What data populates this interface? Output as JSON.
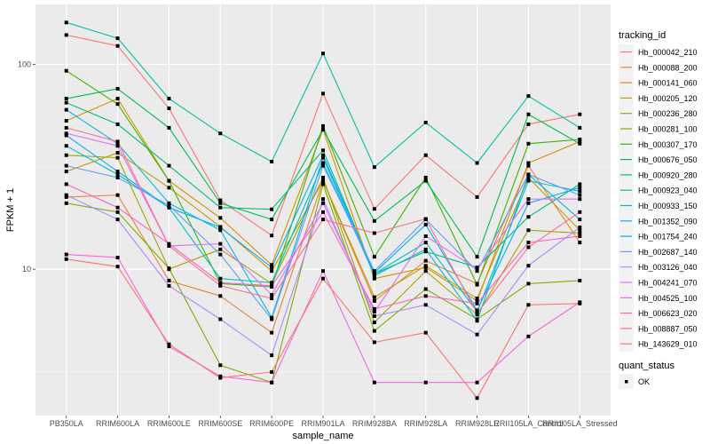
{
  "chart_data": {
    "type": "line",
    "title": "",
    "xlabel": "sample_name",
    "ylabel": "FPKM + 1",
    "y_scale": "log10",
    "ylim": [
      1.93,
      196
    ],
    "y_ticks": [
      10,
      100
    ],
    "y_tick_labels": [
      "10",
      "100"
    ],
    "y_minor_gridlines": [
      3.16,
      31.6
    ],
    "grid": true,
    "categories": [
      "PB350LA",
      "RRIM600LA",
      "RRIM600LE",
      "RRIM600SE",
      "RRIM600PE",
      "RRIM901LA",
      "RRIM928BA",
      "RRIM928LA",
      "RRIM928LE",
      "RRII105LA_Control",
      "RRII105LA_Stressed"
    ],
    "legend_position": "right",
    "legend": {
      "color_title": "tracking_id",
      "shape_title": "quant_status",
      "shape_entries": [
        "OK"
      ]
    },
    "series": [
      {
        "name": "Hb_000042_210",
        "color": "#F8766D",
        "values": [
          139,
          123,
          61,
          21.7,
          14.6,
          72,
          19.7,
          36,
          22.5,
          51,
          57
        ]
      },
      {
        "name": "Hb_000088_200",
        "color": "#EA8331",
        "values": [
          22.5,
          23,
          8.8,
          7.4,
          4.9,
          27,
          7.0,
          11.0,
          8.5,
          32,
          13.5
        ]
      },
      {
        "name": "Hb_000141_060",
        "color": "#D89000",
        "values": [
          53,
          68,
          27,
          17.8,
          10.5,
          48,
          9.0,
          10.2,
          7.0,
          33,
          42
        ]
      },
      {
        "name": "Hb_000205_120",
        "color": "#C09B00",
        "values": [
          30,
          37,
          25,
          16.1,
          9.8,
          27,
          7.3,
          10.4,
          7.2,
          28,
          15.5
        ]
      },
      {
        "name": "Hb_000236_280",
        "color": "#A3A500",
        "values": [
          36,
          35,
          10,
          12.5,
          8.5,
          28,
          5.5,
          9.8,
          6.0,
          15.5,
          15.0
        ]
      },
      {
        "name": "Hb_000281_100",
        "color": "#7CAE00",
        "values": [
          21,
          19,
          10.1,
          3.4,
          2.8,
          26,
          5.0,
          8.0,
          5.7,
          8.5,
          8.8
        ]
      },
      {
        "name": "Hb_000307_170",
        "color": "#39B600",
        "values": [
          93,
          64,
          27,
          8.5,
          8.2,
          50,
          11.5,
          28,
          8.4,
          41,
          43
        ]
      },
      {
        "name": "Hb_000676_050",
        "color": "#00BB4E",
        "values": [
          68,
          76,
          49,
          21,
          17.5,
          48,
          17.2,
          27,
          11.5,
          57,
          41
        ]
      },
      {
        "name": "Hb_000920_280",
        "color": "#00BF7D",
        "values": [
          65,
          51,
          32,
          20,
          19.6,
          38,
          9.5,
          12.2,
          10.2,
          18.0,
          26
        ]
      },
      {
        "name": "Hb_000923_040",
        "color": "#00C1A3",
        "values": [
          160,
          134,
          68,
          46,
          33.5,
          113,
          31.5,
          52,
          33,
          70,
          49
        ]
      },
      {
        "name": "Hb_000933_150",
        "color": "#00BFC4",
        "values": [
          40,
          29,
          20,
          9.0,
          8.6,
          33,
          9.5,
          13.5,
          6.2,
          27,
          24
        ]
      },
      {
        "name": "Hb_001352_090",
        "color": "#00B9E3",
        "values": [
          60,
          41,
          21,
          15.5,
          5.8,
          35,
          9.3,
          12.5,
          5.6,
          29,
          17.5
        ]
      },
      {
        "name": "Hb_001754_240",
        "color": "#00ADFA",
        "values": [
          45,
          30,
          20,
          16.0,
          10.2,
          36,
          9.6,
          16.5,
          6.3,
          21,
          25
        ]
      },
      {
        "name": "Hb_002687_140",
        "color": "#619CFF",
        "values": [
          32,
          28,
          20.5,
          11.8,
          5.7,
          32,
          9.8,
          17.5,
          9.8,
          29,
          23
        ]
      },
      {
        "name": "Hb_003126_040",
        "color": "#AE87FF",
        "values": [
          23,
          17.5,
          8.3,
          5.7,
          3.8,
          22,
          5.9,
          6.7,
          4.8,
          10.4,
          16
        ]
      },
      {
        "name": "Hb_004241_070",
        "color": "#DB72FB",
        "values": [
          46,
          40,
          13,
          13.3,
          7.5,
          21,
          6.2,
          14.5,
          10.0,
          22,
          22
        ]
      },
      {
        "name": "Hb_004525_100",
        "color": "#F564E3",
        "values": [
          11.8,
          11.4,
          4.2,
          3.0,
          2.8,
          9.8,
          2.8,
          2.8,
          2.8,
          4.7,
          6.9
        ]
      },
      {
        "name": "Hb_006623_020",
        "color": "#FF61C3",
        "values": [
          26,
          20,
          13.3,
          8.6,
          8.3,
          19,
          6.4,
          7.4,
          6.8,
          13.5,
          14.5
        ]
      },
      {
        "name": "Hb_008887_050",
        "color": "#FF6C91",
        "values": [
          49,
          42,
          13,
          8.3,
          7.2,
          17.5,
          15,
          17.6,
          6.1,
          12.8,
          19
        ]
      },
      {
        "name": "Hb_143629_010",
        "color": "#F8766D",
        "values": [
          11.2,
          10.3,
          4.3,
          2.95,
          3.15,
          9.0,
          4.4,
          4.9,
          2.35,
          6.7,
          6.8
        ]
      }
    ]
  }
}
